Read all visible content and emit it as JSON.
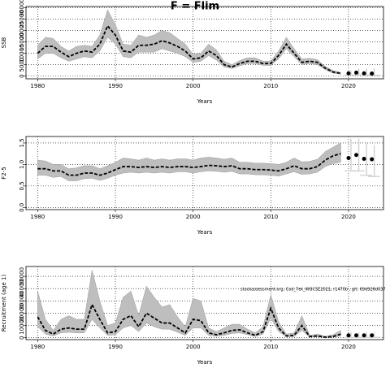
{
  "title": "F = Flim",
  "chart_data": [
    {
      "type": "band-line",
      "ylabel": "SSB",
      "xlabel": "Years",
      "xlim": [
        1978.5,
        2024.5
      ],
      "xticks": [
        1980,
        1990,
        2000,
        2010,
        2020
      ],
      "ylim": [
        -1200,
        30500
      ],
      "yticks": [
        0,
        5000,
        10000,
        15000,
        20000,
        25000,
        30000
      ],
      "grid": true,
      "band_color": "#bebebe",
      "line_color": "#000000",
      "forecast_color": "#d3d3d3",
      "x": [
        1980,
        1981,
        1982,
        1983,
        1984,
        1985,
        1986,
        1987,
        1988,
        1989,
        1990,
        1991,
        1992,
        1993,
        1994,
        1995,
        1996,
        1997,
        1998,
        1999,
        2000,
        2001,
        2002,
        2003,
        2004,
        2005,
        2006,
        2007,
        2008,
        2009,
        2010,
        2011,
        2012,
        2013,
        2014,
        2015,
        2016,
        2017,
        2018,
        2019
      ],
      "median": [
        10000,
        13000,
        13000,
        10500,
        8500,
        10000,
        11000,
        10500,
        14000,
        22000,
        18000,
        11000,
        10500,
        13500,
        13500,
        14000,
        15500,
        14500,
        13000,
        11000,
        7500,
        8000,
        11000,
        9000,
        5000,
        4000,
        5500,
        6500,
        6500,
        5500,
        5500,
        9000,
        14000,
        10000,
        6000,
        6500,
        6000,
        3500,
        1800,
        1200
      ],
      "lower": [
        7500,
        10000,
        10000,
        8000,
        6500,
        7500,
        8500,
        8000,
        11000,
        17000,
        14000,
        8500,
        8000,
        10500,
        10500,
        10500,
        12000,
        11000,
        10000,
        8500,
        6000,
        6500,
        9000,
        7000,
        4000,
        3300,
        4500,
        5500,
        5500,
        4700,
        4700,
        7500,
        12000,
        8500,
        5000,
        5500,
        5000,
        2800,
        1300,
        800
      ],
      "upper": [
        13500,
        17000,
        16500,
        13000,
        11000,
        13000,
        13500,
        13000,
        18000,
        29000,
        22500,
        14000,
        13500,
        18000,
        17000,
        18000,
        20000,
        19000,
        16500,
        14000,
        9500,
        10000,
        14000,
        11500,
        6500,
        5000,
        6800,
        8000,
        8000,
        6500,
        6500,
        11000,
        17000,
        12000,
        7500,
        7800,
        7200,
        4300,
        2400,
        1600
      ],
      "forecast": {
        "x": [
          2020,
          2021,
          2022,
          2023
        ],
        "values": [
          1200,
          1500,
          1200,
          1100
        ],
        "lower": [
          400,
          500,
          400,
          300
        ],
        "upper": [
          2500,
          3200,
          3300,
          3400
        ]
      }
    },
    {
      "type": "band-line",
      "ylabel": "F2-5",
      "xlabel": "Years",
      "xlim": [
        1978.5,
        2024.5
      ],
      "xticks": [
        1980,
        1990,
        2000,
        2010,
        2020
      ],
      "ylim": [
        -0.05,
        1.65
      ],
      "yticks": [
        {
          "value": 0,
          "label": "0.0"
        },
        0.5,
        {
          "value": 1,
          "label": "1.0"
        },
        1.5
      ],
      "grid": true,
      "band_color": "#bebebe",
      "line_color": "#000000",
      "forecast_color": "#d3d3d3",
      "x": [
        1980,
        1981,
        1982,
        1983,
        1984,
        1985,
        1986,
        1987,
        1988,
        1989,
        1990,
        1991,
        1992,
        1993,
        1994,
        1995,
        1996,
        1997,
        1998,
        1999,
        2000,
        2001,
        2002,
        2003,
        2004,
        2005,
        2006,
        2007,
        2008,
        2009,
        2010,
        2011,
        2012,
        2013,
        2014,
        2015,
        2016,
        2017,
        2018,
        2019
      ],
      "median": [
        0.9,
        0.9,
        0.85,
        0.85,
        0.75,
        0.75,
        0.8,
        0.8,
        0.75,
        0.8,
        0.88,
        0.95,
        0.95,
        0.93,
        0.95,
        0.93,
        0.95,
        0.93,
        0.95,
        0.95,
        0.93,
        0.95,
        0.98,
        0.97,
        0.95,
        0.97,
        0.9,
        0.9,
        0.88,
        0.88,
        0.87,
        0.85,
        0.9,
        0.97,
        0.9,
        0.9,
        0.95,
        1.1,
        1.2,
        1.25
      ],
      "lower": [
        0.75,
        0.75,
        0.7,
        0.72,
        0.62,
        0.62,
        0.67,
        0.68,
        0.63,
        0.68,
        0.75,
        0.8,
        0.82,
        0.8,
        0.82,
        0.8,
        0.82,
        0.8,
        0.83,
        0.83,
        0.8,
        0.83,
        0.85,
        0.84,
        0.82,
        0.84,
        0.78,
        0.78,
        0.76,
        0.76,
        0.75,
        0.73,
        0.78,
        0.83,
        0.77,
        0.78,
        0.82,
        0.95,
        1.02,
        1.05
      ],
      "upper": [
        1.1,
        1.08,
        1.0,
        1.0,
        0.9,
        0.92,
        0.97,
        0.97,
        0.9,
        0.97,
        1.05,
        1.15,
        1.13,
        1.1,
        1.15,
        1.1,
        1.13,
        1.1,
        1.13,
        1.13,
        1.1,
        1.15,
        1.17,
        1.15,
        1.12,
        1.15,
        1.05,
        1.05,
        1.03,
        1.03,
        1.02,
        1.0,
        1.05,
        1.15,
        1.06,
        1.07,
        1.12,
        1.3,
        1.4,
        1.5
      ],
      "forecast": {
        "x": [
          2020,
          2021,
          2022,
          2023
        ],
        "values": [
          1.15,
          1.22,
          1.13,
          1.12
        ],
        "lower": [
          0.85,
          0.85,
          0.75,
          0.72
        ],
        "upper": [
          1.6,
          1.6,
          1.5,
          1.45
        ]
      }
    },
    {
      "type": "band-line",
      "ylabel": "Recruitment (age 1)",
      "xlabel": "Years",
      "annotation": "stockassessment.org, Cod_7ek_WGCSE2021, r1470b , git: 69d926d037",
      "xlim": [
        1978.5,
        2024.5
      ],
      "xticks": [
        1980,
        1990,
        2000,
        2010,
        2020
      ],
      "ylim": [
        -1500,
        58000
      ],
      "yticks": [
        0,
        10000,
        20000,
        30000,
        40000,
        50000
      ],
      "grid": true,
      "band_color": "#bebebe",
      "line_color": "#000000",
      "forecast_color": "#d3d3d3",
      "x": [
        1980,
        1981,
        1982,
        1983,
        1984,
        1985,
        1986,
        1987,
        1988,
        1989,
        1990,
        1991,
        1992,
        1993,
        1994,
        1995,
        1996,
        1997,
        1998,
        1999,
        2000,
        2001,
        2002,
        2003,
        2004,
        2005,
        2006,
        2007,
        2008,
        2009,
        2010,
        2011,
        2012,
        2013,
        2014,
        2015,
        2016,
        2017,
        2018,
        2019
      ],
      "median": [
        17000,
        6000,
        3000,
        7000,
        8000,
        7000,
        7000,
        27000,
        15000,
        4000,
        5000,
        15000,
        18000,
        9000,
        20000,
        16000,
        12000,
        12000,
        8000,
        4000,
        15000,
        14000,
        4000,
        2500,
        4000,
        6000,
        6500,
        4000,
        2000,
        5000,
        24000,
        8000,
        1500,
        2000,
        10000,
        1000,
        1500,
        500,
        1000,
        3000
      ],
      "lower": [
        9000,
        3000,
        1500,
        4000,
        4500,
        4000,
        4000,
        15000,
        8000,
        2000,
        2500,
        8000,
        10000,
        5000,
        12000,
        9000,
        7000,
        7000,
        4500,
        2000,
        8000,
        8000,
        2000,
        1200,
        2000,
        3500,
        4000,
        2500,
        1000,
        3000,
        16000,
        5000,
        800,
        1000,
        6000,
        500,
        800,
        200,
        400,
        1500
      ],
      "upper": [
        38000,
        15000,
        6000,
        15000,
        18000,
        15000,
        15000,
        55000,
        30000,
        10000,
        12000,
        33000,
        38000,
        18000,
        42000,
        33000,
        25000,
        27000,
        17000,
        9000,
        32000,
        30000,
        8000,
        5000,
        8000,
        11000,
        11000,
        7000,
        4000,
        9000,
        35000,
        13000,
        3000,
        4000,
        18000,
        2000,
        3000,
        1200,
        2500,
        6000
      ],
      "forecast": {
        "x": [
          2020,
          2021,
          2022,
          2023
        ],
        "values": [
          2000,
          2000,
          2000,
          2000
        ],
        "lower": [
          300,
          300,
          300,
          300
        ],
        "upper": [
          4500,
          4500,
          4500,
          4500
        ]
      }
    }
  ]
}
